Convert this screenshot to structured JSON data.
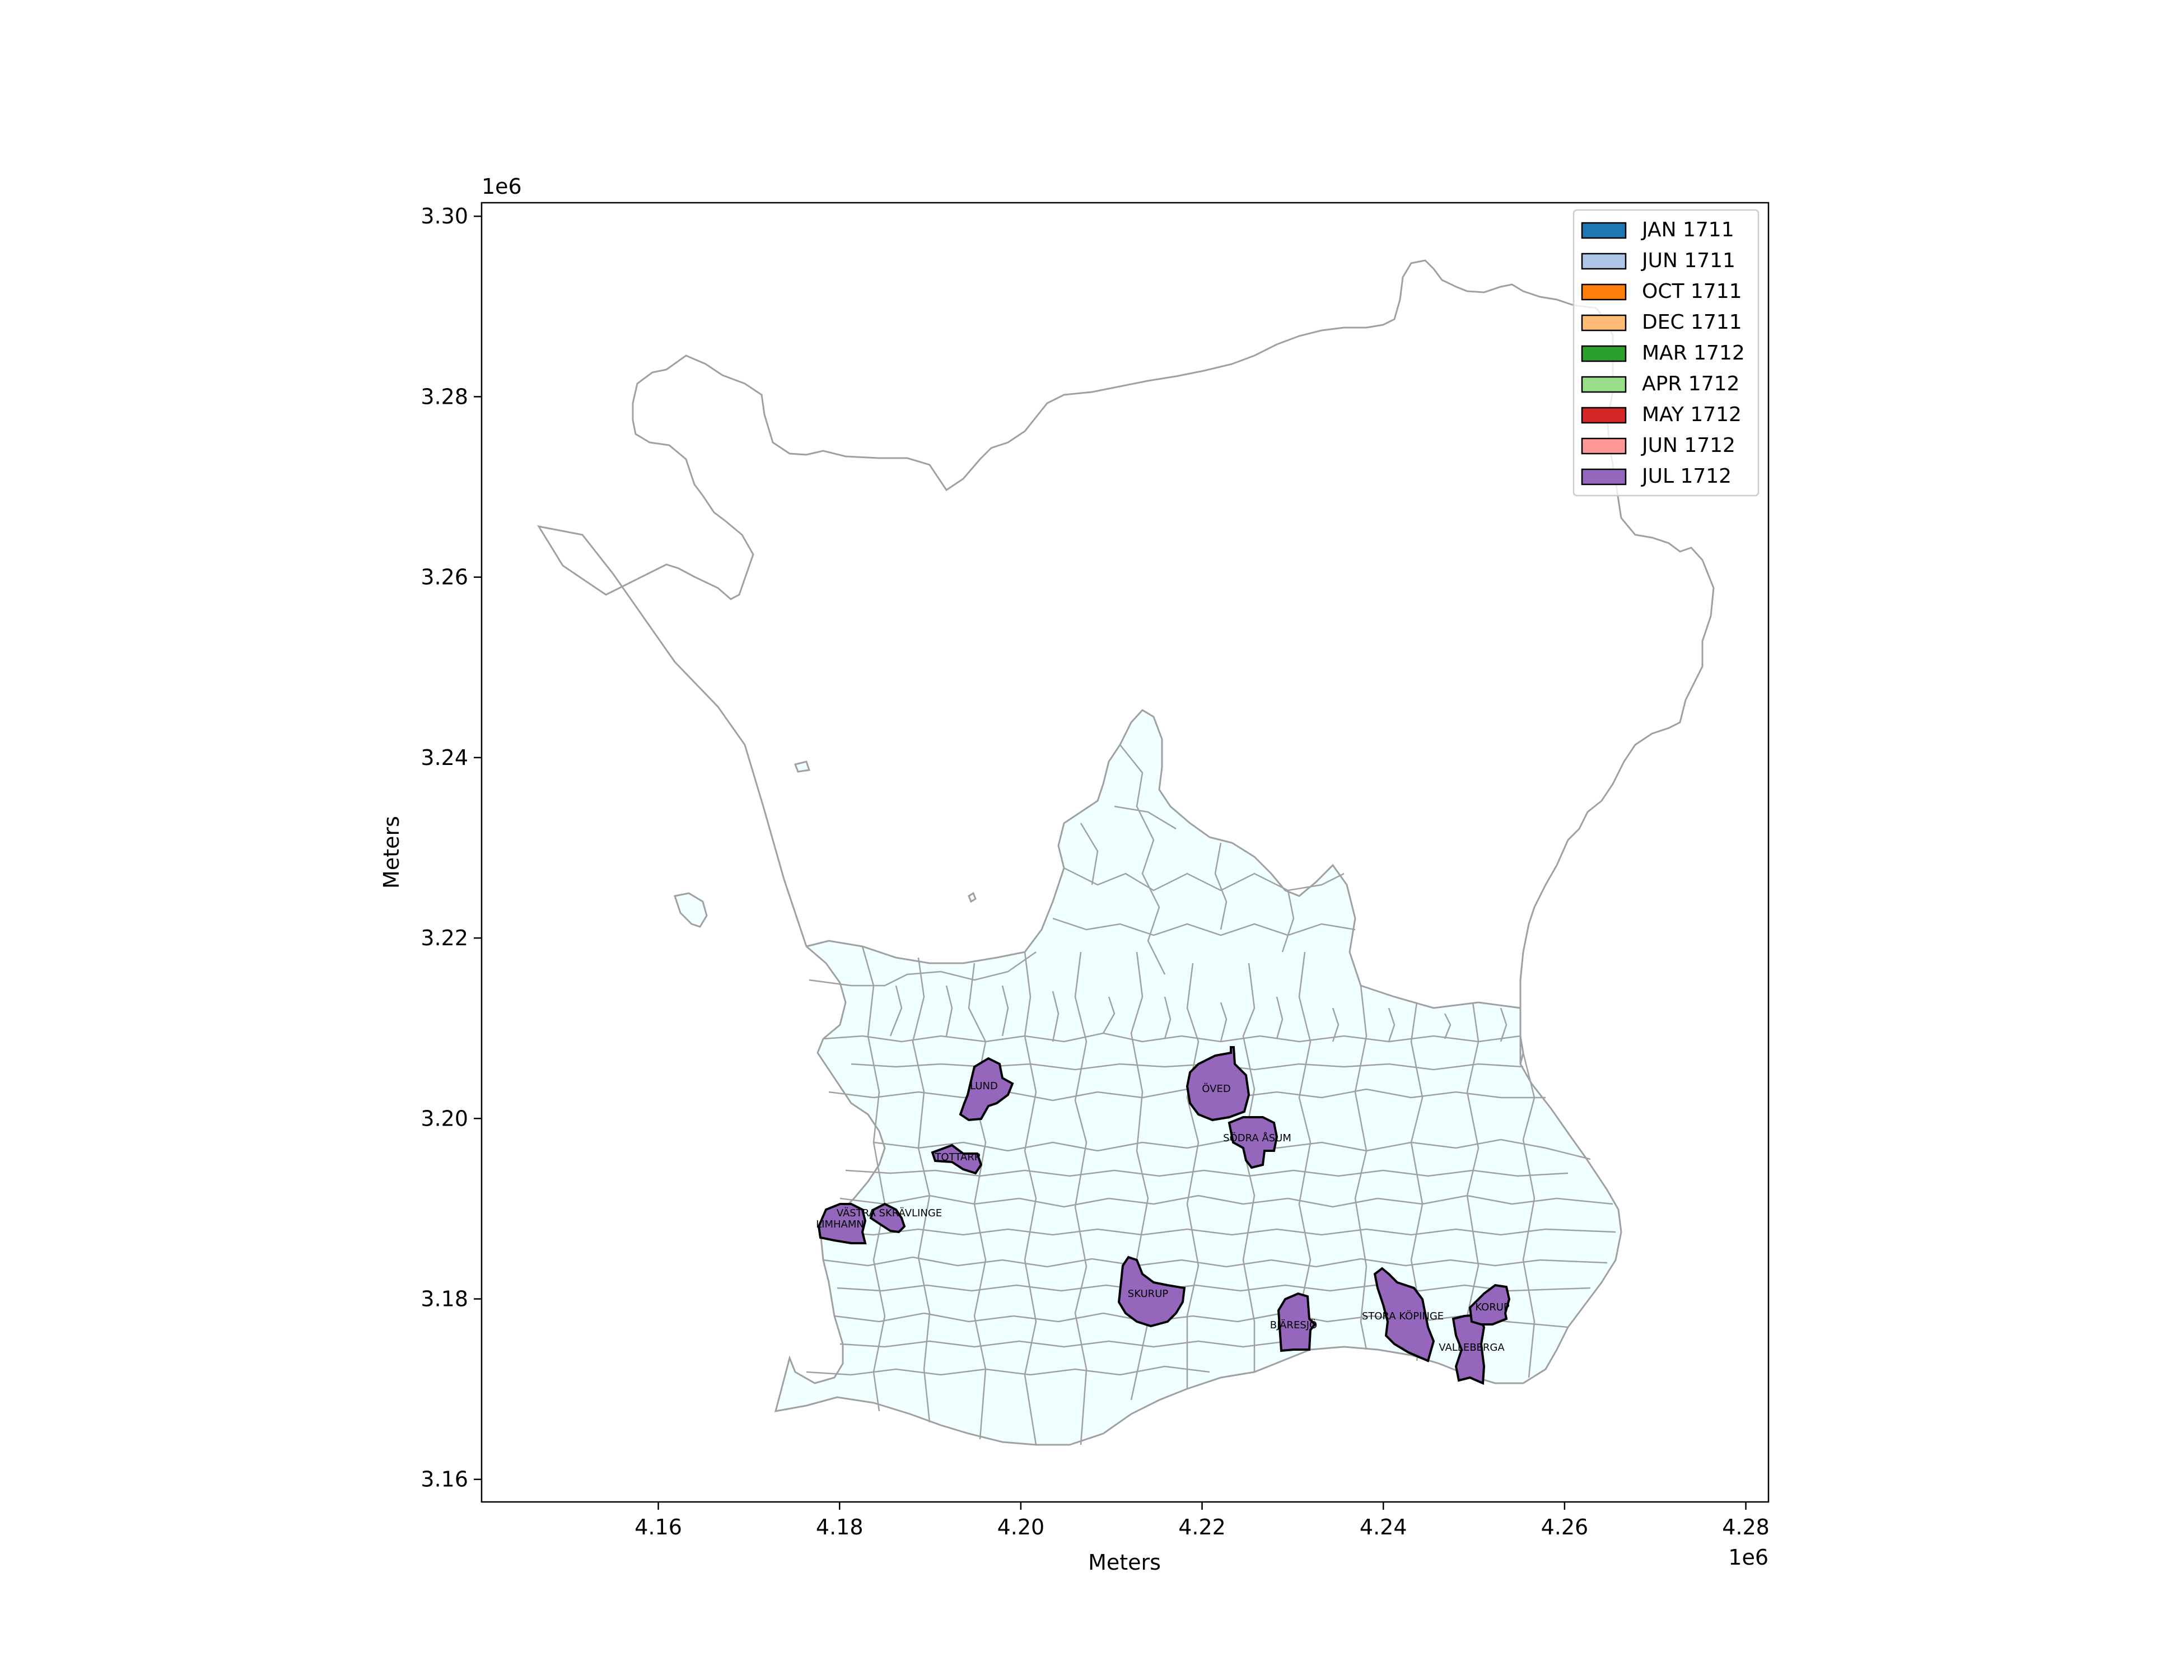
{
  "chart_data": {
    "type": "map",
    "xlabel": "Meters",
    "ylabel": "Meters",
    "x_offset_label": "1e6",
    "y_offset_label": "1e6",
    "xlim": [
      4.1405,
      4.2825
    ],
    "ylim": [
      3.1575,
      3.3015
    ],
    "x_ticks": [
      {
        "value": 4.16,
        "label": "4.16"
      },
      {
        "value": 4.18,
        "label": "4.18"
      },
      {
        "value": 4.2,
        "label": "4.20"
      },
      {
        "value": 4.22,
        "label": "4.22"
      },
      {
        "value": 4.24,
        "label": "4.24"
      },
      {
        "value": 4.26,
        "label": "4.26"
      },
      {
        "value": 4.28,
        "label": "4.28"
      }
    ],
    "y_ticks": [
      {
        "value": 3.16,
        "label": "3.16"
      },
      {
        "value": 3.18,
        "label": "3.18"
      },
      {
        "value": 3.2,
        "label": "3.20"
      },
      {
        "value": 3.22,
        "label": "3.22"
      },
      {
        "value": 3.24,
        "label": "3.24"
      },
      {
        "value": 3.26,
        "label": "3.26"
      },
      {
        "value": 3.28,
        "label": "3.28"
      },
      {
        "value": 3.3,
        "label": "3.30"
      }
    ],
    "grid": false,
    "legend_position": "top-right",
    "legend": [
      {
        "label": "JAN 1711",
        "color": "#1f77b4"
      },
      {
        "label": "JUN 1711",
        "color": "#aec7e8"
      },
      {
        "label": "OCT 1711",
        "color": "#ff7f0e"
      },
      {
        "label": "DEC 1711",
        "color": "#ffbb78"
      },
      {
        "label": "MAR 1712",
        "color": "#2ca02c"
      },
      {
        "label": "APR 1712",
        "color": "#98df8a"
      },
      {
        "label": "MAY 1712",
        "color": "#d62728"
      },
      {
        "label": "JUN 1712",
        "color": "#ff9896"
      },
      {
        "label": "JUL 1712",
        "color": "#9467bd"
      }
    ],
    "colors": {
      "base_fill": "#f0ffff",
      "border": "#a0a0a0",
      "highlight_border": "#000000"
    },
    "highlighted_parishes": [
      {
        "name": "LUND",
        "x": 4.1965,
        "y": 3.2037,
        "period": "JUL 1712"
      },
      {
        "name": "ÖVED",
        "x": 4.222,
        "y": 3.2033,
        "period": "JUL 1712"
      },
      {
        "name": "SÖDRA ÅSUM",
        "x": 4.2265,
        "y": 3.1976,
        "period": "JUL 1712"
      },
      {
        "name": "TOTTARP",
        "x": 4.192,
        "y": 3.1957,
        "period": "JUL 1712"
      },
      {
        "name": "VÄSTRA SKRÄVLINGE",
        "x": 4.185,
        "y": 3.1892,
        "period": "JUL 1712"
      },
      {
        "name": "LIMHAMN",
        "x": 4.18,
        "y": 3.188,
        "period": "JUL 1712"
      },
      {
        "name": "SKURUP",
        "x": 4.2145,
        "y": 3.1815,
        "period": "JUL 1712"
      },
      {
        "name": "BJÄRESJÖ",
        "x": 4.2305,
        "y": 3.1783,
        "period": "JUL 1712"
      },
      {
        "name": "STORA KÖPINGE",
        "x": 4.2435,
        "y": 3.179,
        "period": "JUL 1712"
      },
      {
        "name": "KORUP",
        "x": 4.2525,
        "y": 3.1795,
        "period": "JUL 1712"
      },
      {
        "name": "VALLEBERGA",
        "x": 4.251,
        "y": 3.1755,
        "period": "JUL 1712"
      }
    ]
  }
}
